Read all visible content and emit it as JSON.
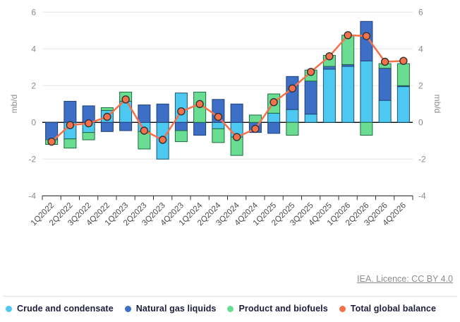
{
  "chart_data": {
    "type": "bar",
    "subtype": "stacked-column-with-line",
    "title": "",
    "xlabel": "",
    "ylabel_left": "mb/d",
    "ylabel_right": "mb/d",
    "ylim": [
      -4,
      6
    ],
    "yticks": [
      -4,
      -2,
      0,
      2,
      4,
      6
    ],
    "grid": true,
    "legend_position": "bottom",
    "categories": [
      "1Q2022",
      "2Q2022",
      "3Q2022",
      "4Q2022",
      "1Q2023",
      "2Q2023",
      "3Q2023",
      "4Q2023",
      "1Q2024",
      "2Q2024",
      "3Q2024",
      "4Q2024",
      "1Q2025",
      "2Q2025",
      "3Q2025",
      "4Q2025",
      "1Q2026",
      "2Q2026",
      "3Q2026",
      "4Q2026"
    ],
    "series": [
      {
        "name": "Crude and condensate",
        "type": "bar",
        "color": "#4DC8F1",
        "border": "#1c4f6e",
        "values": [
          0,
          -0.9,
          -0.55,
          0.65,
          1.15,
          -0.5,
          -2.0,
          1.6,
          0,
          -0.35,
          -0.8,
          0,
          0.5,
          0.7,
          0.45,
          2.9,
          3.05,
          3.35,
          1.2,
          1.95
        ]
      },
      {
        "name": "Natural gas liquids",
        "type": "bar",
        "color": "#3E6FC7",
        "border": "#203e73",
        "values": [
          -0.95,
          1.15,
          0.9,
          -0.5,
          -0.45,
          0.95,
          1.0,
          -0.45,
          -0.7,
          1.25,
          1.0,
          -0.55,
          -0.6,
          1.8,
          1.8,
          0.15,
          0.1,
          2.15,
          1.75,
          0.05
        ]
      },
      {
        "name": "Product and biofuels",
        "type": "bar",
        "color": "#6ADD93",
        "border": "#1e6b40",
        "values": [
          -0.25,
          -0.5,
          -0.4,
          0.15,
          0.5,
          -0.95,
          0,
          -0.6,
          1.65,
          -0.75,
          -1.0,
          0.4,
          1.05,
          -0.7,
          0.6,
          0.6,
          1.6,
          -0.7,
          0.25,
          1.2
        ]
      },
      {
        "name": "Total global balance",
        "type": "line",
        "color": "#F4714B",
        "marker_border": "#333333",
        "values": [
          -1.05,
          -0.15,
          -0.05,
          0.3,
          1.25,
          -0.45,
          -0.95,
          0.6,
          1.0,
          0.3,
          -0.8,
          -0.35,
          1.1,
          1.85,
          2.75,
          3.6,
          4.75,
          4.7,
          3.3,
          3.35
        ]
      }
    ],
    "colors": {
      "grid": "#e6e6e6",
      "zero_line": "#000000",
      "axis_line": "#333333",
      "tick_label": "#8c8c8c",
      "category_label": "#4a4a4a"
    }
  },
  "footer": {
    "license_text": "IEA. Licence: CC BY 4.0"
  }
}
